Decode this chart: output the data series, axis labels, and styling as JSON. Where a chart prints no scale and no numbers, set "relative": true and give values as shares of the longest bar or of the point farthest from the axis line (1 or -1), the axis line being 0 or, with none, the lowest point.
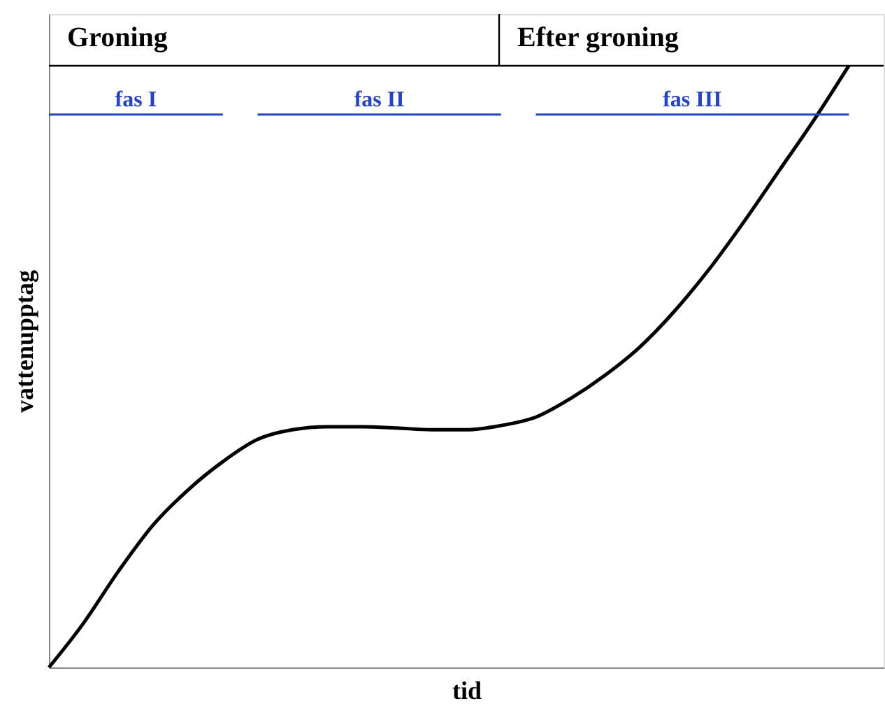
{
  "chart_data": {
    "type": "line",
    "relative": true,
    "xlabel": "tid",
    "ylabel": "vattenupptag",
    "categories": [
      null,
      null,
      null,
      null,
      null,
      null,
      null,
      null,
      null,
      null,
      null,
      null,
      null,
      null,
      null,
      null,
      null,
      null,
      null,
      null,
      null,
      null,
      null,
      null,
      null
    ],
    "series": [
      {
        "color": "#000000",
        "values": [
          0,
          0.074,
          0.16,
          0.237,
          0.295,
          0.342,
          0.379,
          0.395,
          0.4,
          0.4,
          0.398,
          0.395,
          0.395,
          0.402,
          0.416,
          0.447,
          0.486,
          0.533,
          0.593,
          0.663,
          0.742,
          0.826,
          0.91,
          1,
          null
        ]
      },
      {
        "name": "fas I",
        "color": "#2244cc",
        "values": [
          0.919,
          0.919,
          0.919,
          0.919,
          0.919,
          0.919,
          null,
          null,
          null,
          null,
          null,
          null,
          null,
          null,
          null,
          null,
          null,
          null,
          null,
          null,
          null,
          null,
          null,
          null,
          null
        ]
      },
      {
        "name": "fas II",
        "color": "#2244cc",
        "values": [
          null,
          null,
          null,
          null,
          null,
          null,
          0.919,
          0.919,
          0.919,
          0.919,
          0.919,
          0.919,
          0.919,
          0.919,
          null,
          null,
          null,
          null,
          null,
          null,
          null,
          null,
          null,
          null,
          null
        ]
      },
      {
        "name": "fas III",
        "color": "#2244cc",
        "values": [
          null,
          null,
          null,
          null,
          null,
          null,
          null,
          null,
          null,
          null,
          null,
          null,
          null,
          null,
          0.919,
          0.919,
          0.919,
          0.919,
          0.919,
          0.919,
          0.919,
          0.919,
          0.919,
          0.919,
          null
        ]
      }
    ],
    "annotations": [
      "Groning",
      "Efter groning"
    ],
    "grid": false
  }
}
